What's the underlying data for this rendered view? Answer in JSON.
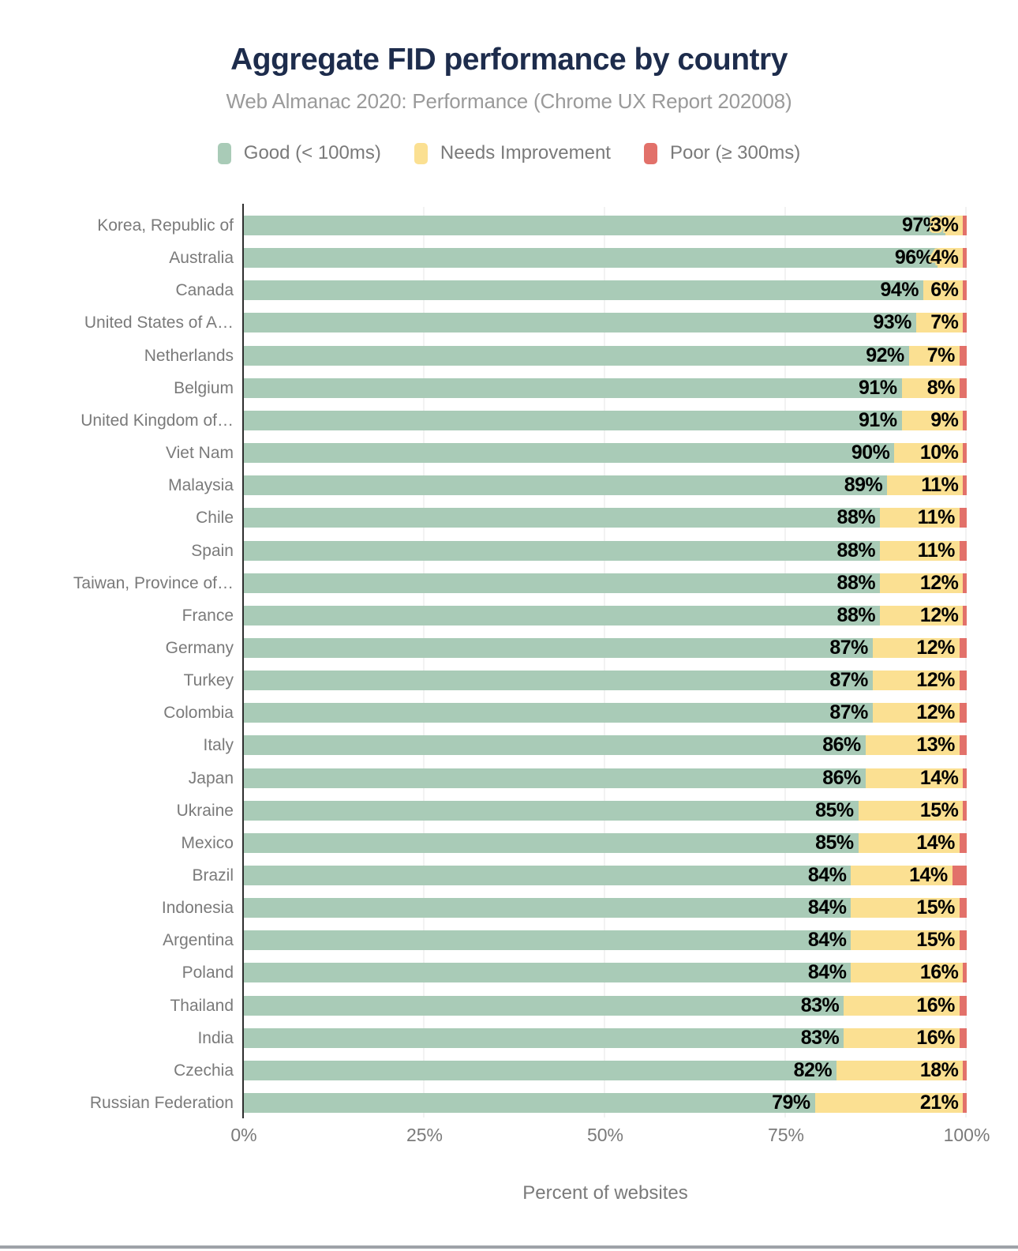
{
  "title": "Aggregate FID performance by country",
  "subtitle": "Web Almanac 2020: Performance (Chrome UX Report 202008)",
  "xlabel": "Percent of websites",
  "colors": {
    "good": "#A9CBB7",
    "needs_improvement": "#FBE092",
    "poor": "#E2716A",
    "title_text": "#1D2C4C",
    "subtitle_text": "#9A9A9A",
    "axis_text": "#7A7A7A",
    "axis_line": "#2F2F2F",
    "gridline": "#F2F2F2",
    "value_label": "#000000"
  },
  "legend": [
    {
      "label": "Good (< 100ms)",
      "color": "#A9CBB7"
    },
    {
      "label": "Needs Improvement",
      "color": "#FBE092"
    },
    {
      "label": "Poor (≥ 300ms)",
      "color": "#E2716A"
    }
  ],
  "x_ticks": [
    {
      "label": "0%",
      "value": 0
    },
    {
      "label": "25%",
      "value": 25
    },
    {
      "label": "50%",
      "value": 50
    },
    {
      "label": "75%",
      "value": 75
    },
    {
      "label": "100%",
      "value": 100
    }
  ],
  "chart_data": {
    "type": "bar",
    "orientation": "horizontal",
    "stacked": true,
    "title": "Aggregate FID performance by country",
    "subtitle": "Web Almanac 2020: Performance (Chrome UX Report 202008)",
    "xlabel": "Percent of websites",
    "xlim": [
      0,
      100
    ],
    "grid": "vertical",
    "legend_position": "top",
    "value_labels_shown_for": [
      "Good (< 100ms)",
      "Needs Improvement"
    ],
    "categories": [
      "Korea, Republic of",
      "Australia",
      "Canada",
      "United States of A…",
      "Netherlands",
      "Belgium",
      "United Kingdom of…",
      "Viet Nam",
      "Malaysia",
      "Chile",
      "Spain",
      "Taiwan, Province of…",
      "France",
      "Germany",
      "Turkey",
      "Colombia",
      "Italy",
      "Japan",
      "Ukraine",
      "Mexico",
      "Brazil",
      "Indonesia",
      "Argentina",
      "Poland",
      "Thailand",
      "India",
      "Czechia",
      "Russian Federation"
    ],
    "series": [
      {
        "name": "Good (< 100ms)",
        "color": "#A9CBB7",
        "values": [
          97,
          96,
          94,
          93,
          92,
          91,
          91,
          90,
          89,
          88,
          88,
          88,
          88,
          87,
          87,
          87,
          86,
          86,
          85,
          85,
          84,
          84,
          84,
          84,
          83,
          83,
          82,
          79
        ]
      },
      {
        "name": "Needs Improvement",
        "color": "#FBE092",
        "values": [
          3,
          4,
          6,
          7,
          7,
          8,
          9,
          10,
          11,
          11,
          11,
          12,
          12,
          12,
          12,
          12,
          13,
          14,
          15,
          14,
          14,
          15,
          15,
          16,
          16,
          16,
          18,
          21
        ]
      },
      {
        "name": "Poor (≥ 300ms)",
        "color": "#E2716A",
        "values": [
          0.5,
          0.5,
          0.5,
          0.5,
          1,
          1,
          0.5,
          0.5,
          0.5,
          1,
          1,
          0.5,
          0.5,
          1,
          1,
          1,
          1,
          0.5,
          0.5,
          1,
          2,
          1,
          1,
          0.5,
          1,
          1,
          0.5,
          0.5
        ]
      }
    ]
  }
}
